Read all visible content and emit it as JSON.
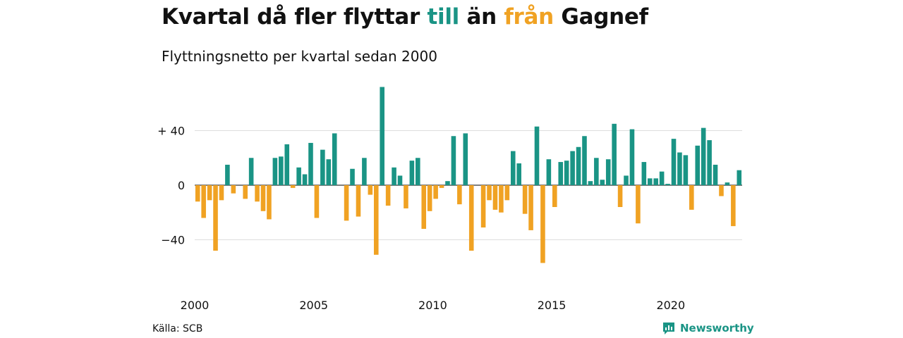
{
  "header": {
    "title_part1": "Kvartal då fler flyttar ",
    "title_in": "till",
    "title_mid": " än ",
    "title_out": "från",
    "title_part2": " Gagnef",
    "subtitle": "Flyttningsnetto per kvartal sedan 2000"
  },
  "footer": {
    "source": "Källa: SCB",
    "brand": "Newsworthy"
  },
  "colors": {
    "positive": "#1a9485",
    "negative": "#f0a223",
    "grid": "#dddddd"
  },
  "chart_data": {
    "type": "bar",
    "title": "Kvartal då fler flyttar till än från Gagnef",
    "subtitle": "Flyttningsnetto per kvartal sedan 2000",
    "ylim": [
      -67,
      75
    ],
    "yticks": [
      {
        "value": 40,
        "label": "+ 40"
      },
      {
        "value": 0,
        "label": "0"
      },
      {
        "value": -40,
        "label": "−40"
      }
    ],
    "xticks": [
      {
        "year": 2000,
        "label": "2000"
      },
      {
        "year": 2005,
        "label": "2005"
      },
      {
        "year": 2010,
        "label": "2010"
      },
      {
        "year": 2015,
        "label": "2015"
      },
      {
        "year": 2020,
        "label": "2020"
      }
    ],
    "start_year": 2000,
    "values": [
      -12,
      -24,
      -11,
      -48,
      -11,
      15,
      -6,
      0,
      -10,
      20,
      -12,
      -19,
      -25,
      20,
      21,
      30,
      -2,
      13,
      8,
      31,
      -24,
      26,
      19,
      38,
      0,
      -26,
      12,
      -23,
      20,
      -7,
      -51,
      72,
      -15,
      13,
      7,
      -17,
      18,
      20,
      -32,
      -19,
      -10,
      -2,
      3,
      36,
      -14,
      38,
      -48,
      0,
      -31,
      -11,
      -18,
      -20,
      -11,
      25,
      16,
      -21,
      -33,
      43,
      -57,
      19,
      -16,
      17,
      18,
      25,
      28,
      36,
      3,
      20,
      4,
      19,
      45,
      -16,
      7,
      41,
      -28,
      17,
      5,
      5,
      10,
      1,
      34,
      24,
      22,
      -18,
      29,
      42,
      33,
      15,
      -8,
      2,
      -30,
      11
    ]
  }
}
